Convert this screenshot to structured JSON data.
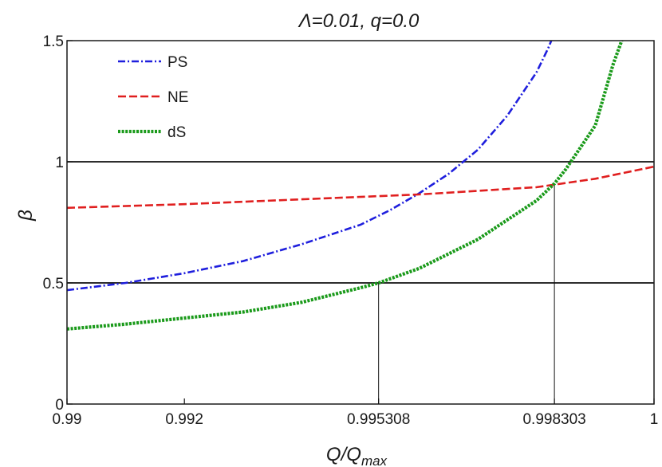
{
  "chart_data": {
    "type": "line",
    "title": "Λ=0.01, q=0.0",
    "xlabel_main": "Q/Q",
    "xlabel_sub": "max",
    "ylabel": "β",
    "xlim": [
      0.99,
      1.0
    ],
    "ylim": [
      0,
      1.5
    ],
    "x_ticks": [
      {
        "value": 0.99,
        "label": "0.99"
      },
      {
        "value": 0.992,
        "label": "0.992"
      },
      {
        "value": 0.995308,
        "label": "0.995308"
      },
      {
        "value": 0.998303,
        "label": "0.998303"
      },
      {
        "value": 1.0,
        "label": "1"
      }
    ],
    "y_ticks": [
      {
        "value": 0,
        "label": "0"
      },
      {
        "value": 0.5,
        "label": "0.5"
      },
      {
        "value": 1,
        "label": "1"
      },
      {
        "value": 1.5,
        "label": "1.5"
      }
    ],
    "hlines": [
      0.5,
      1.0
    ],
    "vlines": [
      {
        "x": 0.995308,
        "y": 0.5
      },
      {
        "x": 0.998303,
        "y": 0.91
      }
    ],
    "legend_position": "top-left",
    "series": [
      {
        "name": "PS",
        "color": "#1f1fdd",
        "style": "dashdot",
        "points": [
          [
            0.99,
            0.47
          ],
          [
            0.991,
            0.5
          ],
          [
            0.992,
            0.54
          ],
          [
            0.993,
            0.59
          ],
          [
            0.994,
            0.66
          ],
          [
            0.995,
            0.74
          ],
          [
            0.9955,
            0.8
          ],
          [
            0.996,
            0.87
          ],
          [
            0.9965,
            0.95
          ],
          [
            0.997,
            1.05
          ],
          [
            0.9975,
            1.19
          ],
          [
            0.998,
            1.37
          ],
          [
            0.9982,
            1.47
          ],
          [
            0.99825,
            1.5
          ]
        ]
      },
      {
        "name": "NE",
        "color": "#e01f1f",
        "style": "dashed",
        "points": [
          [
            0.99,
            0.81
          ],
          [
            0.992,
            0.825
          ],
          [
            0.994,
            0.845
          ],
          [
            0.996,
            0.865
          ],
          [
            0.998,
            0.895
          ],
          [
            0.999,
            0.93
          ],
          [
            1.0,
            0.98
          ]
        ]
      },
      {
        "name": "dS",
        "color": "#1a9a1a",
        "style": "dotted",
        "points": [
          [
            0.99,
            0.31
          ],
          [
            0.991,
            0.33
          ],
          [
            0.992,
            0.355
          ],
          [
            0.993,
            0.38
          ],
          [
            0.994,
            0.42
          ],
          [
            0.995,
            0.48
          ],
          [
            0.995308,
            0.5
          ],
          [
            0.996,
            0.56
          ],
          [
            0.997,
            0.68
          ],
          [
            0.998,
            0.84
          ],
          [
            0.998303,
            0.91
          ],
          [
            0.9985,
            0.97
          ],
          [
            0.999,
            1.15
          ],
          [
            0.9993,
            1.4
          ],
          [
            0.99945,
            1.5
          ]
        ]
      }
    ]
  }
}
